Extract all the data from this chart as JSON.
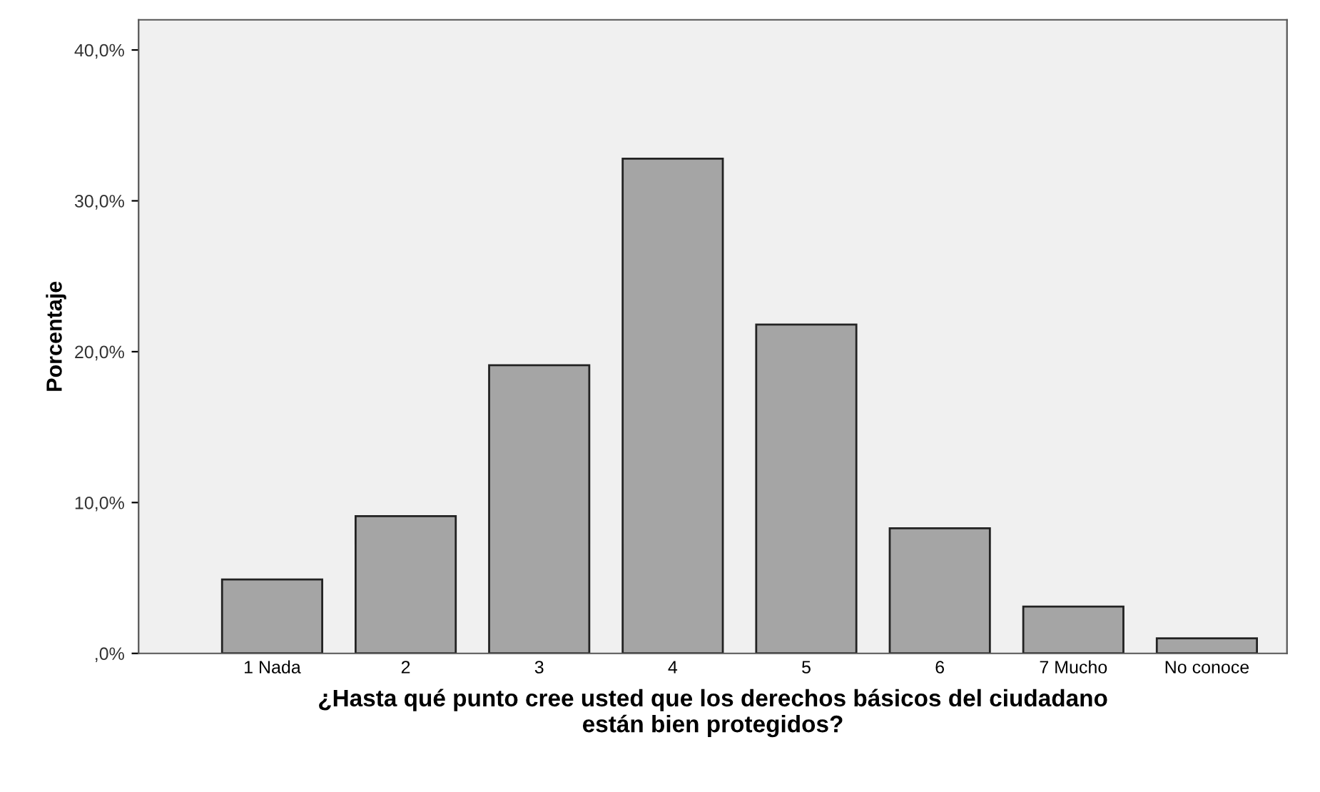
{
  "chart_data": {
    "type": "bar",
    "xlabel": "¿Hasta qué punto cree usted que los derechos básicos del ciudadano\nestán bien protegidos?",
    "ylabel": "Porcentaje",
    "categories": [
      "1 Nada",
      "2",
      "3",
      "4",
      "5",
      "6",
      "7 Mucho",
      "No conoce"
    ],
    "values": [
      4.9,
      9.1,
      19.1,
      32.8,
      21.8,
      8.3,
      3.1,
      1.0
    ],
    "color": "#a5a5a5",
    "ylim": [
      0,
      42
    ],
    "yticks": [
      {
        "value": 0,
        "label": ",0%"
      },
      {
        "value": 10,
        "label": "10,0%"
      },
      {
        "value": 20,
        "label": "20,0%"
      },
      {
        "value": 30,
        "label": "30,0%"
      },
      {
        "value": 40,
        "label": "40,0%"
      }
    ],
    "grid": false
  }
}
